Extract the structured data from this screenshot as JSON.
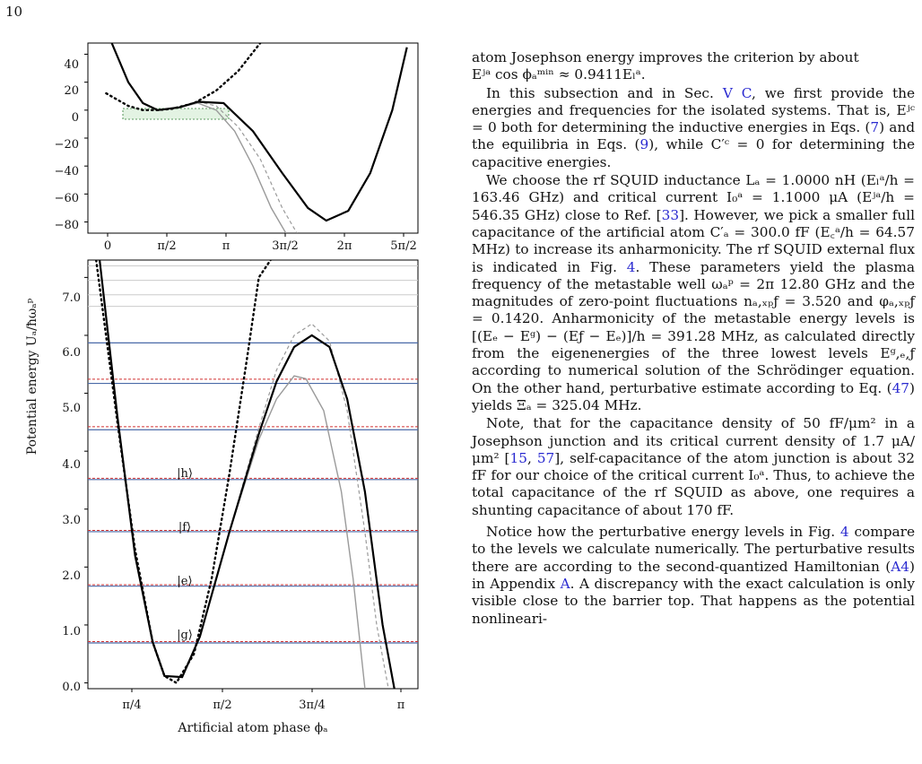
{
  "page": {
    "number": "10"
  },
  "figure": {
    "top_panel": {
      "y_ticks": [
        "40",
        "20",
        "0",
        "−20",
        "−40",
        "−60",
        "−80"
      ],
      "x_ticks": [
        "0",
        "π/2",
        "π",
        "3π/2",
        "2π",
        "5π/2"
      ]
    },
    "bottom_panel": {
      "y_ticks": [
        "7.0",
        "6.0",
        "5.0",
        "4.0",
        "3.0",
        "2.0",
        "1.0",
        "0.0"
      ],
      "x_ticks": [
        "π/4",
        "π/2",
        "3π/4",
        "π"
      ],
      "ylabel": "Potential energy Uₐ/ħωₐᵖ",
      "xlabel": "Artificial atom phase ϕₐ",
      "state_labels": [
        "|h⟩",
        "|f⟩",
        "|e⟩",
        "|g⟩"
      ]
    },
    "colors": {
      "full_potential": "#000000",
      "approx_potential": "#9a9a9a",
      "numerical_level": "#4a6aa8",
      "perturbative_level": "#d03030",
      "box_fill": "#e3f3e3"
    }
  },
  "chart_data": [
    {
      "type": "line",
      "panel": "top",
      "xlabel": "",
      "ylabel": "",
      "xlim": [
        -0.5,
        8.5
      ],
      "ylim": [
        -88,
        48
      ],
      "x_ticks_labels": [
        "0",
        "π/2",
        "π",
        "3π/2",
        "2π",
        "5π/2"
      ],
      "y_ticks": [
        40,
        20,
        0,
        -20,
        -40,
        -60,
        -80
      ],
      "series": [
        {
          "style": "solid-black",
          "x": [
            0.15,
            0.6,
            1.0,
            1.4,
            2.0,
            2.5,
            3.2,
            4.0,
            4.8,
            5.5,
            6.0,
            6.6,
            7.2,
            7.8,
            8.2
          ],
          "y": [
            48,
            20,
            5,
            0,
            2,
            6,
            5,
            -15,
            -45,
            -70,
            -79,
            -72,
            -45,
            0,
            45
          ]
        },
        {
          "style": "dashed-gray",
          "x": [
            0.15,
            0.6,
            1.0,
            1.4,
            2.0,
            2.5,
            3.0,
            3.6,
            4.2,
            4.8,
            5.2
          ],
          "y": [
            48,
            20,
            5,
            0,
            2,
            6,
            3,
            -12,
            -35,
            -70,
            -88
          ]
        },
        {
          "style": "solid-gray",
          "x": [
            0.15,
            0.6,
            1.0,
            1.4,
            2.0,
            2.5,
            3.0,
            3.5,
            4.0,
            4.5,
            4.9
          ],
          "y": [
            48,
            20,
            5,
            0,
            2,
            5,
            0,
            -15,
            -40,
            -70,
            -88
          ]
        },
        {
          "style": "dotted-black",
          "x": [
            0.0,
            0.6,
            1.0,
            1.4,
            1.8,
            2.4,
            3.0,
            3.6,
            4.2
          ],
          "y": [
            12,
            3,
            0,
            0,
            1,
            5,
            14,
            28,
            48
          ]
        }
      ]
    },
    {
      "type": "line",
      "panel": "bottom",
      "xlabel": "Artificial atom phase ϕₐ",
      "ylabel": "Potential energy Uₐ/ħωₐᵖ",
      "xlim": [
        0.55,
        3.35
      ],
      "ylim": [
        -0.1,
        7.3
      ],
      "x_ticks_labels": [
        "π/4",
        "π/2",
        "3π/4",
        "π"
      ],
      "y_ticks": [
        0.0,
        1.0,
        2.0,
        3.0,
        4.0,
        5.0,
        6.0,
        7.0
      ],
      "numerical_levels": [
        0.69,
        1.67,
        2.61,
        3.51,
        4.37,
        5.17,
        5.87
      ],
      "perturbative_levels": [
        0.69,
        1.67,
        2.61,
        3.51,
        4.4,
        5.22
      ],
      "background_levels": [
        6.5,
        6.7,
        6.95,
        7.2
      ],
      "series": [
        {
          "style": "solid-black",
          "x": [
            0.65,
            0.8,
            0.95,
            1.1,
            1.2,
            1.35,
            1.5,
            1.75,
            2.0,
            2.15,
            2.3,
            2.45,
            2.6,
            2.75,
            2.9,
            3.05,
            3.15
          ],
          "y": [
            7.3,
            4.6,
            2.2,
            0.7,
            0.12,
            0.1,
            0.8,
            2.6,
            4.3,
            5.2,
            5.8,
            6.0,
            5.8,
            4.9,
            3.3,
            1.0,
            -0.1
          ]
        },
        {
          "style": "dashed-gray",
          "x": [
            0.65,
            0.8,
            0.95,
            1.1,
            1.2,
            1.35,
            1.5,
            1.75,
            2.0,
            2.15,
            2.3,
            2.45,
            2.6,
            2.75,
            2.9,
            3.0,
            3.1
          ],
          "y": [
            7.3,
            4.6,
            2.2,
            0.7,
            0.12,
            0.1,
            0.8,
            2.6,
            4.4,
            5.4,
            6.0,
            6.2,
            5.9,
            4.7,
            2.6,
            1.0,
            -0.1
          ]
        },
        {
          "style": "solid-gray",
          "x": [
            0.65,
            0.8,
            0.95,
            1.1,
            1.2,
            1.35,
            1.5,
            1.75,
            2.0,
            2.15,
            2.3,
            2.4,
            2.55,
            2.7,
            2.8,
            2.9
          ],
          "y": [
            7.3,
            4.6,
            2.2,
            0.7,
            0.12,
            0.1,
            0.8,
            2.6,
            4.2,
            4.9,
            5.3,
            5.25,
            4.7,
            3.3,
            1.8,
            -0.1
          ]
        },
        {
          "style": "dotted-black",
          "x": [
            0.62,
            0.8,
            0.95,
            1.1,
            1.2,
            1.3,
            1.45,
            1.6,
            1.75,
            1.9,
            2.0,
            2.1
          ],
          "y": [
            7.3,
            4.5,
            2.3,
            0.7,
            0.12,
            0.0,
            0.5,
            1.8,
            3.6,
            5.6,
            7.0,
            7.3
          ]
        }
      ]
    }
  ],
  "text": {
    "p1_a": "atom Josephson energy improves the criterion by about",
    "p1_b": "Eʲᵃ cos ϕₐᵐⁱⁿ ≈ 0.9411Eₗᵃ.",
    "p2_pre": "In this subsection and in Sec. ",
    "p2_link": "V C",
    "p2_post": ", we first provide the energies and frequencies for the isolated systems. That is, Eʲᶜ = 0 both for determining the inductive energies in Eqs. (",
    "p2_link2": "7",
    "p2_mid": ") and the equilibria in Eqs. (",
    "p2_link3": "9",
    "p2_end": "), while C′ᶜ = 0 for determining the capacitive energies.",
    "p3_pre": "We choose the rf SQUID inductance Lₐ = 1.0000 nH (Eₗᵃ/h = 163.46 GHz) and critical current I₀ᵃ = 1.1000 μA (Eʲᵃ/h = 546.35 GHz) close to Ref. [",
    "p3_link": "33",
    "p3_mid": "]. However, we pick a smaller full capacitance of the artificial atom C′ₐ = 300.0 fF (E꜀ᵃ/h = 64.57 MHz) to increase its anharmonicity. The rf SQUID external flux is indicated in Fig. ",
    "p3_link2": "4",
    "p3_end": ". These parameters yield the plasma frequency of the metastable well ωₐᵖ = 2π 12.80 GHz and the magnitudes of zero-point fluctuations nₐ,ₓₚƒ = 3.520 and φₐ,ₓₚƒ = 0.1420. Anharmonicity of the metastable energy levels is [(Eₑ − Eᵍ) − (Eƒ − Eₑ)]/h = 391.28 MHz, as calculated directly from the eigenenergies of the three lowest levels Eᵍ,ₑ,ƒ according to numerical solution of the Schrödinger equation. On the other hand, perturbative estimate according to Eq. (",
    "p3_link3": "47",
    "p3_tail": ") yields Ξₐ = 325.04 MHz.",
    "p4_pre": "Note, that for the capacitance density of 50 fF/μm² in a Josephson junction and its critical current density of 1.7 μA/μm² [",
    "p4_link": "15",
    "p4_sep": ", ",
    "p4_link2": "57",
    "p4_end": "], self-capacitance of the atom junction is about 32 fF for our choice of the critical current I₀ᵃ. Thus, to achieve the total capacitance of the rf SQUID as above, one requires a shunting capacitance of about 170 fF.",
    "p5_pre": "Notice how the perturbative energy levels in Fig. ",
    "p5_link": "4",
    "p5_mid": " compare to the levels we calculate numerically. The perturbative results there are according to the second-quantized Hamiltonian (",
    "p5_link2": "A4",
    "p5_mid2": ") in Appendix ",
    "p5_link3": "A",
    "p5_end": ". A discrepancy with the exact calculation is only visible close to the barrier top. That happens as the potential nonlineari-"
  }
}
